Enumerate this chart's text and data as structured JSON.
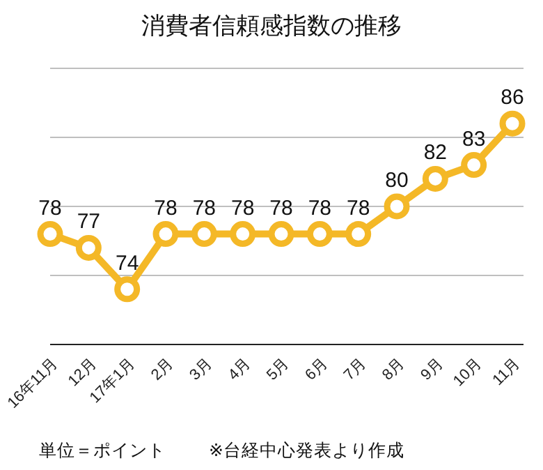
{
  "chart_data": {
    "type": "line",
    "title": "消費者信頼感指数の推移",
    "categories": [
      "16年11月",
      "12月",
      "17年1月",
      "2月",
      "3月",
      "4月",
      "5月",
      "6月",
      "7月",
      "8月",
      "9月",
      "10月",
      "11月"
    ],
    "series": [
      {
        "color": "#f4b827",
        "values": [
          78,
          77,
          74,
          78,
          78,
          78,
          78,
          78,
          78,
          80,
          82,
          83,
          86
        ]
      }
    ],
    "ylim": [
      70,
      90
    ],
    "yticks": [
      {
        "value": 70,
        "label": null
      },
      {
        "value": 75,
        "label": null
      },
      {
        "value": 80,
        "label": null
      },
      {
        "value": 85,
        "label": null
      },
      {
        "value": 90,
        "label": null
      }
    ],
    "grid": "y",
    "tick_labels": "x",
    "marker": "circle",
    "line_style": "solid",
    "data_labels": true,
    "annotations": [
      "単位＝ポイント",
      "※台経中心発表より作成"
    ]
  }
}
